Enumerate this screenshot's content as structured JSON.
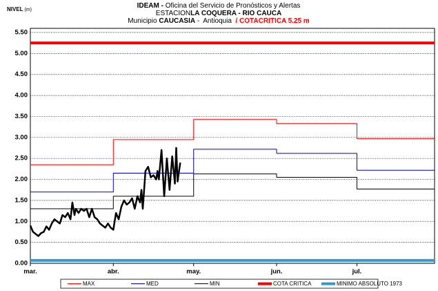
{
  "chart_data": {
    "type": "line",
    "title": [
      [
        {
          "text": "IDEAM -",
          "bold": true
        },
        {
          "text": " Oficina del Servicio de Pronósticos y Alertas",
          "bold": false
        }
      ],
      [
        {
          "text": "ESTACION",
          "bold": false
        },
        {
          "text": "LA COQUERA - RIO CAUCA",
          "bold": true
        }
      ],
      [
        {
          "text": "Municipio ",
          "bold": false
        },
        {
          "text": "CAUCASIA",
          "bold": true
        },
        {
          "text": " -  Antioquia ",
          "bold": false
        },
        {
          "text": " / COTACRITICA 5.25 m",
          "bold": true,
          "color": "#ff0000"
        }
      ]
    ],
    "ylabel": [
      {
        "text": "NIVEL",
        "bold": true
      },
      {
        "text": " (m)",
        "bold": false
      }
    ],
    "xlim": [
      0,
      151
    ],
    "xticks": [
      {
        "value": 0,
        "label": "mar."
      },
      {
        "value": 31,
        "label": "abr."
      },
      {
        "value": 61,
        "label": "may."
      },
      {
        "value": 92,
        "label": "jun."
      },
      {
        "value": 122,
        "label": "jul."
      }
    ],
    "ylim": [
      0,
      5.5
    ],
    "yticks": [
      {
        "value": 0,
        "label": "0.00"
      },
      {
        "value": 0.5,
        "label": "0.50"
      },
      {
        "value": 1,
        "label": "1.00"
      },
      {
        "value": 1.5,
        "label": "1.50"
      },
      {
        "value": 2,
        "label": "2.00"
      },
      {
        "value": 2.5,
        "label": "2.50"
      },
      {
        "value": 3,
        "label": "3.00"
      },
      {
        "value": 3.5,
        "label": "3.50"
      },
      {
        "value": 4,
        "label": "4.00"
      },
      {
        "value": 4.5,
        "label": "4.50"
      },
      {
        "value": 5,
        "label": "5.00"
      },
      {
        "value": 5.5,
        "label": "5.50"
      }
    ],
    "grid": true,
    "legend": "bottom",
    "series": [
      {
        "name": "MAX",
        "color": "#ff0000",
        "width": 1,
        "x": [
          0,
          31,
          31,
          61,
          61,
          92,
          92,
          122,
          122,
          151
        ],
        "values": [
          2.35,
          2.35,
          2.95,
          2.95,
          3.43,
          3.43,
          3.33,
          3.33,
          2.97,
          2.97
        ]
      },
      {
        "name": "MED",
        "color": "#0000cc",
        "width": 1,
        "x": [
          0,
          31,
          31,
          61,
          61,
          92,
          92,
          122,
          122,
          151
        ],
        "values": [
          1.7,
          1.7,
          2.15,
          2.15,
          2.72,
          2.72,
          2.62,
          2.62,
          2.22,
          2.22
        ]
      },
      {
        "name": "MIN",
        "color": "#000000",
        "width": 1,
        "x": [
          0,
          31,
          31,
          61,
          61,
          92,
          92,
          122,
          122,
          151
        ],
        "values": [
          1.3,
          1.3,
          1.6,
          1.6,
          2.13,
          2.13,
          2.05,
          2.05,
          1.77,
          1.77
        ]
      },
      {
        "name": "COTA CRITICA",
        "color": "#ff0000",
        "width": 4,
        "x": [
          0,
          151
        ],
        "values": [
          5.25,
          5.25
        ]
      },
      {
        "name": "MINIMO ABSOLUTO 1973",
        "color": "#3399cc",
        "width": 4,
        "x": [
          0,
          151
        ],
        "values": [
          0.07,
          0.07
        ]
      },
      {
        "color": "#000000",
        "width": 2.5,
        "x": [
          0,
          1,
          2,
          3,
          4,
          5,
          6,
          7,
          8,
          9,
          10,
          11,
          12,
          13,
          14,
          15,
          15.7,
          16.5,
          17,
          18,
          19,
          20,
          21,
          22,
          23,
          24,
          25,
          26,
          27,
          28,
          29,
          30,
          31,
          32,
          33,
          34,
          35,
          36,
          37,
          38,
          39,
          40,
          41,
          41.5,
          42,
          43,
          44,
          45,
          46,
          47,
          47.5,
          48,
          49,
          50,
          51,
          52,
          53,
          54,
          54.5,
          55,
          56
        ],
        "values": [
          0.9,
          0.75,
          0.7,
          0.65,
          0.72,
          0.75,
          0.88,
          0.8,
          0.95,
          1.05,
          1.0,
          0.95,
          1.15,
          1.1,
          1.2,
          1.05,
          1.45,
          1.15,
          1.3,
          1.2,
          1.3,
          1.25,
          1.3,
          1.1,
          1.3,
          1.1,
          1.05,
          0.95,
          0.9,
          0.85,
          0.95,
          0.85,
          0.8,
          1.2,
          1.05,
          1.35,
          1.5,
          1.4,
          1.45,
          1.55,
          1.3,
          1.6,
          1.45,
          1.75,
          1.3,
          2.2,
          2.3,
          2.05,
          2.1,
          2.0,
          2.2,
          2.0,
          2.7,
          1.6,
          2.5,
          1.75,
          2.55,
          1.9,
          2.75,
          1.95,
          2.4
        ]
      }
    ]
  }
}
